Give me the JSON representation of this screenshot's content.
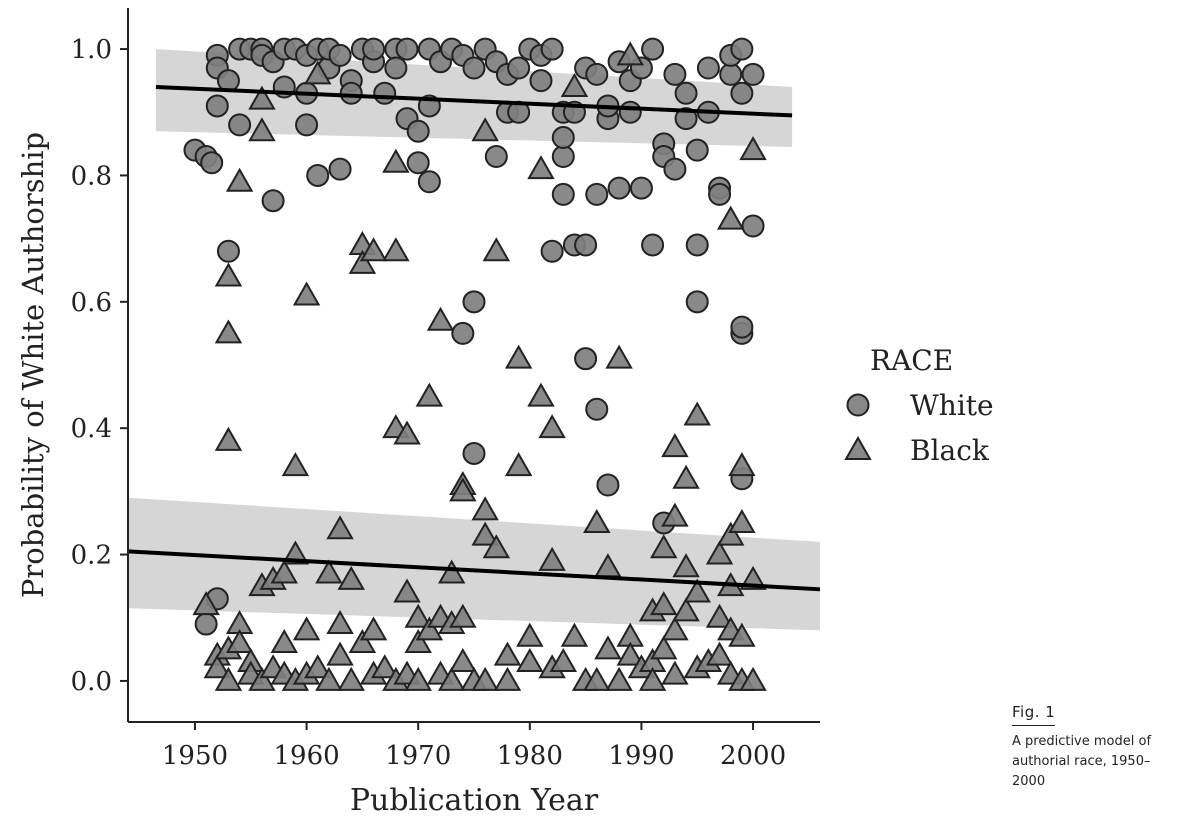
{
  "chart_data": {
    "type": "scatter",
    "title": "",
    "xlabel": "Publication Year",
    "ylabel": "Probability of White Authorship",
    "xlim": [
      1944,
      2006
    ],
    "ylim": [
      -0.065,
      1.065
    ],
    "xticks": [
      "1950",
      "1960",
      "1970",
      "1980",
      "1990",
      "2000"
    ],
    "yticks": [
      "0.0",
      "0.2",
      "0.4",
      "0.6",
      "0.8",
      "1.0"
    ],
    "grid": false,
    "legend": {
      "title": "RACE",
      "placement": "right"
    },
    "colors": {
      "marker_fill": "#7f7f7f",
      "marker_edge": "#222222",
      "band": "#cfcfcf",
      "line": "#000000"
    },
    "series": [
      {
        "name": "White",
        "marker": "circle",
        "points": [
          [
            1950,
            0.84
          ],
          [
            1951,
            0.83
          ],
          [
            1951.5,
            0.82
          ],
          [
            1952,
            0.99
          ],
          [
            1952,
            0.97
          ],
          [
            1952,
            0.91
          ],
          [
            1952,
            0.13
          ],
          [
            1951,
            0.09
          ],
          [
            1953,
            0.95
          ],
          [
            1953,
            0.68
          ],
          [
            1954,
            0.88
          ],
          [
            1954,
            1.0
          ],
          [
            1955,
            1.0
          ],
          [
            1956,
            1.0
          ],
          [
            1956,
            0.99
          ],
          [
            1957,
            0.76
          ],
          [
            1957,
            0.98
          ],
          [
            1958,
            0.94
          ],
          [
            1958,
            1.0
          ],
          [
            1959,
            1.0
          ],
          [
            1960,
            0.93
          ],
          [
            1960,
            0.88
          ],
          [
            1960,
            0.99
          ],
          [
            1961,
            1.0
          ],
          [
            1961,
            0.8
          ],
          [
            1962,
            0.97
          ],
          [
            1962,
            1.0
          ],
          [
            1963,
            0.81
          ],
          [
            1963,
            0.99
          ],
          [
            1964,
            0.95
          ],
          [
            1964,
            0.93
          ],
          [
            1965,
            1.0
          ],
          [
            1966,
            0.98
          ],
          [
            1966,
            1.0
          ],
          [
            1967,
            0.93
          ],
          [
            1968,
            1.0
          ],
          [
            1968,
            0.97
          ],
          [
            1969,
            0.89
          ],
          [
            1969,
            1.0
          ],
          [
            1970,
            0.87
          ],
          [
            1970,
            0.82
          ],
          [
            1971,
            0.79
          ],
          [
            1971,
            0.91
          ],
          [
            1971,
            1.0
          ],
          [
            1972,
            0.98
          ],
          [
            1973,
            1.0
          ],
          [
            1974,
            0.55
          ],
          [
            1974,
            0.99
          ],
          [
            1975,
            0.6
          ],
          [
            1975,
            0.36
          ],
          [
            1975,
            0.97
          ],
          [
            1976,
            1.0
          ],
          [
            1977,
            0.83
          ],
          [
            1977,
            0.98
          ],
          [
            1978,
            0.9
          ],
          [
            1978,
            0.96
          ],
          [
            1979,
            0.9
          ],
          [
            1979,
            0.97
          ],
          [
            1980,
            1.0
          ],
          [
            1981,
            0.95
          ],
          [
            1981,
            0.99
          ],
          [
            1982,
            0.68
          ],
          [
            1982,
            1.0
          ],
          [
            1983,
            0.83
          ],
          [
            1983,
            0.77
          ],
          [
            1983,
            0.86
          ],
          [
            1983,
            0.9
          ],
          [
            1984,
            0.69
          ],
          [
            1984,
            0.9
          ],
          [
            1985,
            0.69
          ],
          [
            1985,
            0.51
          ],
          [
            1985,
            0.97
          ],
          [
            1986,
            0.77
          ],
          [
            1986,
            0.43
          ],
          [
            1986,
            0.96
          ],
          [
            1987,
            0.31
          ],
          [
            1987,
            0.89
          ],
          [
            1987,
            0.91
          ],
          [
            1988,
            0.78
          ],
          [
            1988,
            0.98
          ],
          [
            1989,
            0.9
          ],
          [
            1989,
            0.95
          ],
          [
            1990,
            0.78
          ],
          [
            1990,
            0.97
          ],
          [
            1991,
            0.69
          ],
          [
            1991,
            1.0
          ],
          [
            1992,
            0.85
          ],
          [
            1992,
            0.83
          ],
          [
            1992,
            0.25
          ],
          [
            1993,
            0.81
          ],
          [
            1993,
            0.96
          ],
          [
            1994,
            0.89
          ],
          [
            1994,
            0.93
          ],
          [
            1995,
            0.84
          ],
          [
            1995,
            0.69
          ],
          [
            1995,
            0.6
          ],
          [
            1996,
            0.9
          ],
          [
            1996,
            0.97
          ],
          [
            1997,
            0.78
          ],
          [
            1997,
            0.77
          ],
          [
            1998,
            0.96
          ],
          [
            1998,
            0.99
          ],
          [
            1999,
            0.55
          ],
          [
            1999,
            0.56
          ],
          [
            1999,
            0.32
          ],
          [
            1999,
            1.0
          ],
          [
            1999,
            0.93
          ],
          [
            2000,
            0.72
          ],
          [
            2000,
            0.96
          ]
        ]
      },
      {
        "name": "Black",
        "marker": "triangle",
        "points": [
          [
            1951,
            0.12
          ],
          [
            1952,
            0.04
          ],
          [
            1952,
            0.02
          ],
          [
            1953,
            0.64
          ],
          [
            1953,
            0.55
          ],
          [
            1953,
            0.38
          ],
          [
            1953,
            0.05
          ],
          [
            1953,
            0.0
          ],
          [
            1954,
            0.79
          ],
          [
            1954,
            0.09
          ],
          [
            1954,
            0.06
          ],
          [
            1955,
            0.03
          ],
          [
            1955,
            0.01
          ],
          [
            1956,
            0.92
          ],
          [
            1956,
            0.87
          ],
          [
            1956,
            0.15
          ],
          [
            1956,
            0.0
          ],
          [
            1957,
            0.16
          ],
          [
            1957,
            0.02
          ],
          [
            1958,
            0.17
          ],
          [
            1958,
            0.06
          ],
          [
            1958,
            0.01
          ],
          [
            1959,
            0.34
          ],
          [
            1959,
            0.2
          ],
          [
            1959,
            0.0
          ],
          [
            1960,
            0.61
          ],
          [
            1960,
            0.08
          ],
          [
            1960,
            0.01
          ],
          [
            1961,
            0.96
          ],
          [
            1961,
            0.02
          ],
          [
            1962,
            0.17
          ],
          [
            1962,
            0.0
          ],
          [
            1963,
            0.24
          ],
          [
            1963,
            0.09
          ],
          [
            1963,
            0.04
          ],
          [
            1964,
            0.16
          ],
          [
            1964,
            0.0
          ],
          [
            1965,
            0.69
          ],
          [
            1965,
            0.66
          ],
          [
            1965,
            0.06
          ],
          [
            1966,
            0.68
          ],
          [
            1966,
            0.08
          ],
          [
            1966,
            0.01
          ],
          [
            1967,
            0.02
          ],
          [
            1968,
            0.82
          ],
          [
            1968,
            0.68
          ],
          [
            1968,
            0.4
          ],
          [
            1968,
            0.0
          ],
          [
            1969,
            0.39
          ],
          [
            1969,
            0.14
          ],
          [
            1969,
            0.01
          ],
          [
            1970,
            0.1
          ],
          [
            1970,
            0.06
          ],
          [
            1970,
            0.0
          ],
          [
            1971,
            0.45
          ],
          [
            1971,
            0.08
          ],
          [
            1972,
            0.57
          ],
          [
            1972,
            0.1
          ],
          [
            1972,
            0.01
          ],
          [
            1973,
            0.17
          ],
          [
            1973,
            0.09
          ],
          [
            1973,
            0.0
          ],
          [
            1974,
            0.31
          ],
          [
            1974,
            0.3
          ],
          [
            1974,
            0.1
          ],
          [
            1974,
            0.03
          ],
          [
            1975,
            0.0
          ],
          [
            1976,
            0.87
          ],
          [
            1976,
            0.27
          ],
          [
            1976,
            0.23
          ],
          [
            1976,
            0.0
          ],
          [
            1977,
            0.68
          ],
          [
            1977,
            0.21
          ],
          [
            1978,
            0.04
          ],
          [
            1978,
            0.0
          ],
          [
            1979,
            0.51
          ],
          [
            1979,
            0.34
          ],
          [
            1980,
            0.07
          ],
          [
            1980,
            0.03
          ],
          [
            1981,
            0.81
          ],
          [
            1981,
            0.45
          ],
          [
            1982,
            0.4
          ],
          [
            1982,
            0.19
          ],
          [
            1982,
            0.02
          ],
          [
            1983,
            0.03
          ],
          [
            1984,
            0.94
          ],
          [
            1984,
            0.07
          ],
          [
            1985,
            0.0
          ],
          [
            1986,
            0.25
          ],
          [
            1986,
            0.0
          ],
          [
            1987,
            0.18
          ],
          [
            1987,
            0.05
          ],
          [
            1988,
            0.51
          ],
          [
            1988,
            0.0
          ],
          [
            1989,
            0.99
          ],
          [
            1989,
            0.07
          ],
          [
            1989,
            0.04
          ],
          [
            1990,
            0.02
          ],
          [
            1991,
            0.11
          ],
          [
            1991,
            0.03
          ],
          [
            1991,
            0.0
          ],
          [
            1992,
            0.21
          ],
          [
            1992,
            0.12
          ],
          [
            1992,
            0.05
          ],
          [
            1993,
            0.37
          ],
          [
            1993,
            0.26
          ],
          [
            1993,
            0.08
          ],
          [
            1993,
            0.01
          ],
          [
            1994,
            0.32
          ],
          [
            1994,
            0.18
          ],
          [
            1994,
            0.11
          ],
          [
            1995,
            0.42
          ],
          [
            1995,
            0.14
          ],
          [
            1995,
            0.02
          ],
          [
            1996,
            0.03
          ],
          [
            1997,
            0.2
          ],
          [
            1997,
            0.1
          ],
          [
            1997,
            0.04
          ],
          [
            1998,
            0.73
          ],
          [
            1998,
            0.23
          ],
          [
            1998,
            0.15
          ],
          [
            1998,
            0.08
          ],
          [
            1998,
            0.01
          ],
          [
            1999,
            0.34
          ],
          [
            1999,
            0.25
          ],
          [
            1999,
            0.07
          ],
          [
            1999,
            0.0
          ],
          [
            2000,
            0.84
          ],
          [
            2000,
            0.16
          ],
          [
            2000,
            0.0
          ]
        ]
      }
    ],
    "trend_lines": [
      {
        "x": [
          1946.5,
          2003.5
        ],
        "y": [
          0.94,
          0.895
        ],
        "ci_lower": [
          0.87,
          0.845
        ],
        "ci_upper": [
          1.0,
          0.94
        ]
      },
      {
        "x": [
          1944,
          2006
        ],
        "y": [
          0.205,
          0.145
        ],
        "ci_lower": [
          0.115,
          0.08
        ],
        "ci_upper": [
          0.29,
          0.22
        ]
      }
    ]
  },
  "caption": {
    "figure_label": "Fig. 1",
    "text": "A predictive model of authorial race, 1950–2000"
  }
}
